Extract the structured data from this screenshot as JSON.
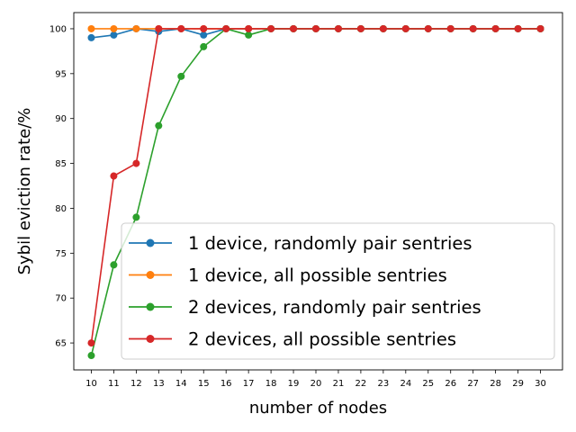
{
  "chart_data": {
    "type": "line",
    "title": "",
    "xlabel": "number of nodes",
    "ylabel": "Sybil eviction rate/%",
    "x": [
      10,
      11,
      12,
      13,
      14,
      15,
      16,
      17,
      18,
      19,
      20,
      21,
      22,
      23,
      24,
      25,
      26,
      27,
      28,
      29,
      30
    ],
    "xlim": [
      9.22,
      30.98
    ],
    "ylim": [
      62.0,
      101.8
    ],
    "yticks": [
      65,
      70,
      75,
      80,
      85,
      90,
      95,
      100
    ],
    "grid": false,
    "legend_position": "lower-right",
    "series": [
      {
        "name": "1 device, randomly pair sentries",
        "color": "#1f77b4",
        "values": [
          99.0,
          99.3,
          100,
          99.7,
          100,
          99.3,
          100,
          100,
          100,
          100,
          100,
          100,
          100,
          100,
          100,
          100,
          100,
          100,
          100,
          100,
          100
        ]
      },
      {
        "name": "1 device, all possible sentries",
        "color": "#ff7f0e",
        "values": [
          100,
          100,
          100,
          100,
          100,
          100,
          100,
          100,
          100,
          100,
          100,
          100,
          100,
          100,
          100,
          100,
          100,
          100,
          100,
          100,
          100
        ]
      },
      {
        "name": "2 devices, randomly pair sentries",
        "color": "#2ca02c",
        "values": [
          63.6,
          73.7,
          79.0,
          89.2,
          94.7,
          98.0,
          100,
          99.3,
          100,
          100,
          100,
          100,
          100,
          100,
          100,
          100,
          100,
          100,
          100,
          100,
          100
        ]
      },
      {
        "name": "2 devices, all possible sentries",
        "color": "#d62728",
        "values": [
          65.0,
          83.6,
          85.0,
          100,
          100,
          100,
          100,
          100,
          100,
          100,
          100,
          100,
          100,
          100,
          100,
          100,
          100,
          100,
          100,
          100,
          100
        ]
      }
    ]
  }
}
